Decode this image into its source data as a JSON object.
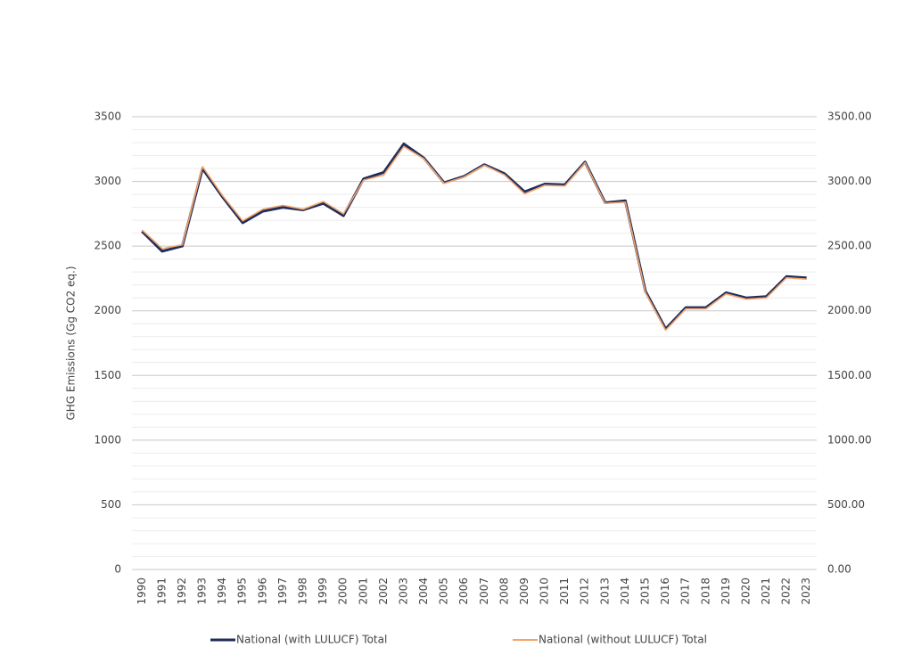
{
  "chart_data": {
    "type": "line",
    "y_axis_label": "GHG Emissions (Gg CO2 eq.)",
    "categories": [
      "1990",
      "1991",
      "1992",
      "1993",
      "1994",
      "1995",
      "1996",
      "1997",
      "1998",
      "1999",
      "2000",
      "2001",
      "2002",
      "2003",
      "2004",
      "2005",
      "2006",
      "2007",
      "2008",
      "2009",
      "2010",
      "2011",
      "2012",
      "2013",
      "2014",
      "2015",
      "2016",
      "2017",
      "2018",
      "2019",
      "2020",
      "2021",
      "2022",
      "2023"
    ],
    "series": [
      {
        "name": "National (with LULUCF) Total",
        "color": "#1f2d5c",
        "values": [
          2615,
          2460,
          2500,
          3100,
          2880,
          2680,
          2770,
          2800,
          2780,
          2830,
          2735,
          3020,
          3070,
          3290,
          3180,
          2990,
          3040,
          3130,
          3060,
          2920,
          2980,
          2975,
          3150,
          2835,
          2850,
          2150,
          1860,
          2025,
          2025,
          2140,
          2100,
          2110,
          2265,
          2255
        ]
      },
      {
        "name": "National (without LULUCF) Total",
        "color": "#f4a46a",
        "values": [
          2625,
          2480,
          2510,
          3115,
          2890,
          2695,
          2785,
          2815,
          2785,
          2845,
          2750,
          3010,
          3050,
          3270,
          3175,
          2985,
          3035,
          3125,
          3050,
          2905,
          2970,
          2965,
          3145,
          2830,
          2840,
          2140,
          1850,
          2015,
          2015,
          2130,
          2090,
          2100,
          2255,
          2245
        ]
      }
    ],
    "ylim": [
      0,
      3500
    ],
    "yticks": [
      0,
      500,
      1000,
      1500,
      2000,
      2500,
      3000,
      3500
    ],
    "y_minor_ticks": [
      100,
      200,
      300,
      400,
      600,
      700,
      800,
      900,
      1100,
      1200,
      1300,
      1400,
      1600,
      1700,
      1800,
      1900,
      2100,
      2200,
      2300,
      2400,
      2600,
      2700,
      2800,
      2900,
      3100,
      3200,
      3300,
      3400
    ],
    "y2lim": [
      0,
      3500
    ],
    "y2ticks": [
      {
        "value": 0,
        "label": "0.00"
      },
      {
        "value": 500,
        "label": "500.00"
      },
      {
        "value": 1000,
        "label": "1000.00"
      },
      {
        "value": 1500,
        "label": "1500.00"
      },
      {
        "value": 2000,
        "label": "2000.00"
      },
      {
        "value": 2500,
        "label": "2500.00"
      },
      {
        "value": 3000,
        "label": "3000.00"
      },
      {
        "value": 3500,
        "label": "3500.00"
      }
    ],
    "grid": true,
    "legend": "bottom"
  }
}
